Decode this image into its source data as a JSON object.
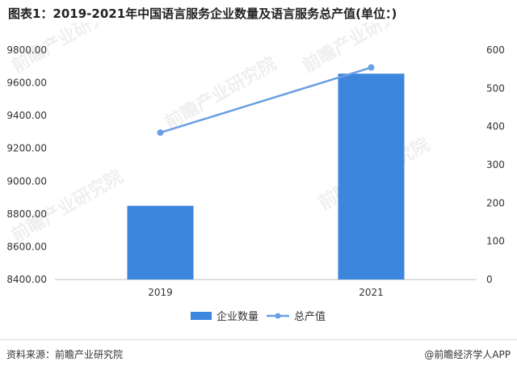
{
  "title": "图表1：2019-2021年中国语言服务企业数量及语言服务总产值(单位：)",
  "chart_data": {
    "type": "bar",
    "x": [
      "2019",
      "2021"
    ],
    "series": [
      {
        "name": "企业数量",
        "type": "bar",
        "axis": "left",
        "values": [
          8850,
          9656
        ],
        "color": "#3d86dd"
      },
      {
        "name": "总产值",
        "type": "line",
        "axis": "right",
        "values": [
          384.2,
          554.5
        ],
        "color": "#6a9fe3"
      }
    ],
    "left_axis": {
      "min": 8400,
      "max": 9800,
      "ticks": [
        "8400.00",
        "8600.00",
        "8800.00",
        "9000.00",
        "9200.00",
        "9400.00",
        "9600.00",
        "9800.00"
      ]
    },
    "right_axis": {
      "min": 0,
      "max": 600,
      "ticks": [
        "0",
        "100",
        "200",
        "300",
        "400",
        "500",
        "600"
      ]
    },
    "legend_position": "bottom-center",
    "grid": false
  },
  "footer": {
    "source": "资料来源：前瞻产业研究院",
    "brand": "@前瞻经济学人APP"
  }
}
